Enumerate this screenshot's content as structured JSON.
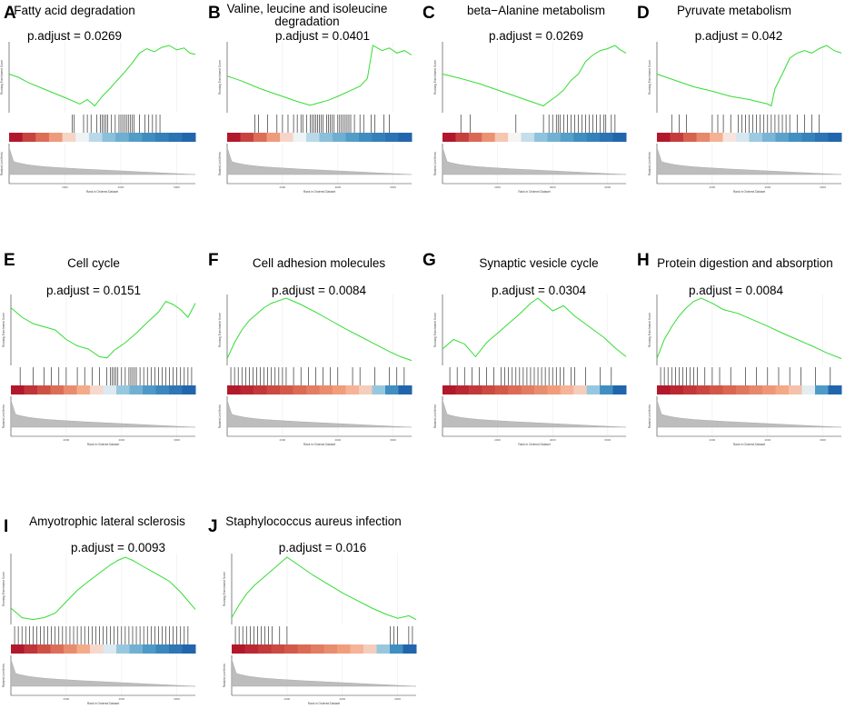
{
  "figure": {
    "es_axis_label": "Running Enrichment Score",
    "rank_axis_label": "Ranked List Metric",
    "x_axis_label": "Rank in Ordered Dataset",
    "x_tick_labels": [
      "2000",
      "4000",
      "6000"
    ],
    "line_color": "#33dd33",
    "hit_color": "#111111",
    "fill_color": "#bdbdbd"
  },
  "chart_data": [
    {
      "letter": "A",
      "title": "Fatty acid degradation",
      "padj_label": "p.adjust = 0.0269",
      "type": "line",
      "es": [
        [
          0,
          0.55
        ],
        [
          5,
          0.5
        ],
        [
          10,
          0.42
        ],
        [
          20,
          0.3
        ],
        [
          30,
          0.18
        ],
        [
          38,
          0.08
        ],
        [
          42,
          0.15
        ],
        [
          46,
          0.05
        ],
        [
          50,
          0.2
        ],
        [
          54,
          0.32
        ],
        [
          58,
          0.45
        ],
        [
          62,
          0.58
        ],
        [
          66,
          0.72
        ],
        [
          70,
          0.88
        ],
        [
          74,
          0.95
        ],
        [
          78,
          0.9
        ],
        [
          82,
          0.97
        ],
        [
          86,
          1
        ],
        [
          90,
          0.93
        ],
        [
          94,
          0.96
        ],
        [
          97,
          0.88
        ],
        [
          100,
          0.86
        ]
      ],
      "hits": [
        34,
        35,
        40,
        42,
        44,
        47,
        49,
        50,
        51,
        52,
        53,
        55,
        57,
        59,
        60,
        61,
        62,
        63,
        64,
        65,
        66,
        67,
        70,
        73,
        75,
        77,
        79,
        81
      ],
      "heat_bias": 0.3
    },
    {
      "letter": "B",
      "title": "Valine, leucine and isoleucine degradation",
      "padj_label": "p.adjust = 0.0401",
      "type": "line",
      "es": [
        [
          0,
          0.52
        ],
        [
          8,
          0.44
        ],
        [
          18,
          0.32
        ],
        [
          28,
          0.22
        ],
        [
          38,
          0.12
        ],
        [
          45,
          0.06
        ],
        [
          50,
          0.1
        ],
        [
          55,
          0.14
        ],
        [
          60,
          0.2
        ],
        [
          66,
          0.28
        ],
        [
          72,
          0.36
        ],
        [
          76,
          0.48
        ],
        [
          79,
          1
        ],
        [
          84,
          0.92
        ],
        [
          88,
          0.96
        ],
        [
          92,
          0.88
        ],
        [
          96,
          0.92
        ],
        [
          100,
          0.85
        ]
      ],
      "hits": [
        15,
        17,
        22,
        27,
        30,
        33,
        36,
        38,
        40,
        41,
        43,
        45,
        46,
        47,
        48,
        49,
        50,
        51,
        52,
        54,
        55,
        56,
        57,
        58,
        60,
        61,
        62,
        63,
        64,
        65,
        66,
        67,
        69,
        72,
        74,
        78,
        80,
        85,
        88
      ],
      "heat_bias": 0.3
    },
    {
      "letter": "C",
      "title": "beta−Alanine metabolism",
      "padj_label": "p.adjust = 0.0269",
      "type": "line",
      "es": [
        [
          0,
          0.55
        ],
        [
          10,
          0.48
        ],
        [
          20,
          0.4
        ],
        [
          30,
          0.3
        ],
        [
          40,
          0.2
        ],
        [
          50,
          0.1
        ],
        [
          55,
          0.05
        ],
        [
          58,
          0.12
        ],
        [
          62,
          0.2
        ],
        [
          66,
          0.3
        ],
        [
          70,
          0.45
        ],
        [
          74,
          0.55
        ],
        [
          78,
          0.75
        ],
        [
          82,
          0.85
        ],
        [
          86,
          0.92
        ],
        [
          90,
          0.95
        ],
        [
          94,
          1
        ],
        [
          97,
          0.93
        ],
        [
          100,
          0.88
        ]
      ],
      "hits": [
        10,
        15,
        40,
        55,
        58,
        60,
        62,
        63,
        64,
        66,
        68,
        70,
        72,
        74,
        76,
        78,
        80,
        82,
        84,
        86,
        88,
        89,
        92,
        94
      ],
      "heat_bias": 0.32
    },
    {
      "letter": "D",
      "title": "Pyruvate metabolism",
      "padj_label": "p.adjust = 0.042",
      "type": "line",
      "es": [
        [
          0,
          0.55
        ],
        [
          10,
          0.45
        ],
        [
          20,
          0.35
        ],
        [
          30,
          0.28
        ],
        [
          40,
          0.2
        ],
        [
          50,
          0.15
        ],
        [
          60,
          0.08
        ],
        [
          62,
          0.05
        ],
        [
          64,
          0.32
        ],
        [
          68,
          0.55
        ],
        [
          72,
          0.8
        ],
        [
          76,
          0.88
        ],
        [
          80,
          0.92
        ],
        [
          84,
          0.88
        ],
        [
          88,
          0.95
        ],
        [
          92,
          1
        ],
        [
          96,
          0.92
        ],
        [
          100,
          0.88
        ]
      ],
      "hits": [
        8,
        12,
        16,
        30,
        33,
        36,
        40,
        44,
        46,
        48,
        50,
        52,
        54,
        56,
        58,
        60,
        62,
        64,
        66,
        68,
        70,
        72,
        76,
        80,
        84,
        88
      ],
      "heat_bias": 0.35
    },
    {
      "letter": "E",
      "title": "Cell cycle",
      "padj_label": "p.adjust = 0.0151",
      "type": "line",
      "es": [
        [
          0,
          0.85
        ],
        [
          6,
          0.7
        ],
        [
          12,
          0.6
        ],
        [
          18,
          0.55
        ],
        [
          24,
          0.5
        ],
        [
          30,
          0.35
        ],
        [
          36,
          0.25
        ],
        [
          42,
          0.2
        ],
        [
          48,
          0.08
        ],
        [
          52,
          0.06
        ],
        [
          56,
          0.18
        ],
        [
          62,
          0.3
        ],
        [
          68,
          0.45
        ],
        [
          74,
          0.62
        ],
        [
          80,
          0.78
        ],
        [
          84,
          0.95
        ],
        [
          88,
          0.9
        ],
        [
          92,
          0.82
        ],
        [
          96,
          0.7
        ],
        [
          100,
          0.92
        ]
      ],
      "hits": [
        5,
        12,
        18,
        22,
        26,
        30,
        36,
        40,
        44,
        48,
        52,
        54,
        55,
        56,
        57,
        58,
        60,
        62,
        64,
        65,
        66,
        67,
        68,
        70,
        72,
        74,
        76,
        78,
        80,
        82,
        84,
        86,
        88,
        90,
        92,
        94,
        96,
        98
      ],
      "heat_bias": 0.45
    },
    {
      "letter": "F",
      "title": "Cell adhesion molecules",
      "padj_label": "p.adjust = 0.0084",
      "type": "line",
      "es": [
        [
          0,
          0.05
        ],
        [
          4,
          0.3
        ],
        [
          8,
          0.5
        ],
        [
          12,
          0.65
        ],
        [
          16,
          0.75
        ],
        [
          20,
          0.85
        ],
        [
          24,
          0.92
        ],
        [
          28,
          0.96
        ],
        [
          32,
          1
        ],
        [
          36,
          0.95
        ],
        [
          40,
          0.9
        ],
        [
          48,
          0.78
        ],
        [
          56,
          0.65
        ],
        [
          64,
          0.52
        ],
        [
          72,
          0.4
        ],
        [
          80,
          0.28
        ],
        [
          88,
          0.16
        ],
        [
          94,
          0.08
        ],
        [
          100,
          0.02
        ]
      ],
      "hits": [
        2,
        4,
        6,
        8,
        10,
        12,
        14,
        16,
        18,
        20,
        22,
        24,
        26,
        28,
        30,
        32,
        36,
        40,
        44,
        48,
        52,
        56,
        60,
        68,
        72,
        80,
        88,
        92,
        96
      ],
      "heat_bias": 0.78
    },
    {
      "letter": "G",
      "title": "Synaptic vesicle cycle",
      "padj_label": "p.adjust = 0.0304",
      "type": "line",
      "es": [
        [
          0,
          0.2
        ],
        [
          6,
          0.35
        ],
        [
          12,
          0.28
        ],
        [
          18,
          0.08
        ],
        [
          24,
          0.3
        ],
        [
          30,
          0.45
        ],
        [
          36,
          0.6
        ],
        [
          42,
          0.75
        ],
        [
          48,
          0.92
        ],
        [
          52,
          1
        ],
        [
          56,
          0.9
        ],
        [
          60,
          0.8
        ],
        [
          66,
          0.88
        ],
        [
          72,
          0.72
        ],
        [
          80,
          0.55
        ],
        [
          88,
          0.38
        ],
        [
          94,
          0.22
        ],
        [
          100,
          0.08
        ]
      ],
      "hits": [
        4,
        8,
        12,
        16,
        20,
        24,
        28,
        32,
        34,
        36,
        38,
        40,
        42,
        44,
        46,
        48,
        50,
        52,
        54,
        56,
        58,
        60,
        62,
        64,
        66,
        70,
        72,
        78,
        86,
        92
      ],
      "heat_bias": 0.78
    },
    {
      "letter": "H",
      "title": "Protein digestion and absorption",
      "padj_label": "p.adjust = 0.0084",
      "type": "line",
      "es": [
        [
          0,
          0.05
        ],
        [
          4,
          0.35
        ],
        [
          8,
          0.55
        ],
        [
          12,
          0.72
        ],
        [
          16,
          0.85
        ],
        [
          20,
          0.95
        ],
        [
          24,
          1
        ],
        [
          30,
          0.92
        ],
        [
          36,
          0.82
        ],
        [
          44,
          0.76
        ],
        [
          52,
          0.66
        ],
        [
          60,
          0.56
        ],
        [
          68,
          0.45
        ],
        [
          76,
          0.35
        ],
        [
          84,
          0.25
        ],
        [
          92,
          0.14
        ],
        [
          100,
          0.05
        ]
      ],
      "hits": [
        2,
        4,
        6,
        8,
        10,
        12,
        14,
        16,
        18,
        20,
        22,
        26,
        30,
        34,
        40,
        48,
        54,
        60,
        66,
        72,
        78,
        86,
        94
      ],
      "heat_bias": 0.82
    },
    {
      "letter": "I",
      "title": "Amyotrophic lateral sclerosis",
      "padj_label": "p.adjust = 0.0093",
      "type": "line",
      "es": [
        [
          0,
          0.2
        ],
        [
          6,
          0.05
        ],
        [
          12,
          0.02
        ],
        [
          18,
          0.05
        ],
        [
          24,
          0.12
        ],
        [
          30,
          0.3
        ],
        [
          36,
          0.48
        ],
        [
          42,
          0.62
        ],
        [
          48,
          0.75
        ],
        [
          54,
          0.88
        ],
        [
          58,
          0.95
        ],
        [
          62,
          1
        ],
        [
          66,
          0.95
        ],
        [
          72,
          0.85
        ],
        [
          80,
          0.72
        ],
        [
          86,
          0.62
        ],
        [
          92,
          0.45
        ],
        [
          100,
          0.18
        ]
      ],
      "hits": [
        2,
        4,
        6,
        8,
        10,
        12,
        14,
        16,
        18,
        20,
        22,
        24,
        26,
        28,
        30,
        32,
        34,
        36,
        38,
        40,
        42,
        44,
        46,
        48,
        50,
        52,
        54,
        56,
        58,
        60,
        62,
        64,
        66,
        68,
        70,
        72,
        74,
        76,
        78,
        80,
        82,
        84,
        86,
        88,
        90,
        92,
        94,
        96
      ],
      "heat_bias": 0.45
    },
    {
      "letter": "J",
      "title": "Staphylococcus aureus infection",
      "padj_label": "p.adjust = 0.016",
      "type": "line",
      "es": [
        [
          0,
          0.05
        ],
        [
          4,
          0.25
        ],
        [
          8,
          0.42
        ],
        [
          12,
          0.55
        ],
        [
          16,
          0.65
        ],
        [
          20,
          0.75
        ],
        [
          24,
          0.85
        ],
        [
          28,
          0.95
        ],
        [
          30,
          1
        ],
        [
          36,
          0.88
        ],
        [
          44,
          0.72
        ],
        [
          52,
          0.58
        ],
        [
          60,
          0.44
        ],
        [
          68,
          0.32
        ],
        [
          76,
          0.2
        ],
        [
          84,
          0.1
        ],
        [
          90,
          0.04
        ],
        [
          96,
          0.08
        ],
        [
          100,
          0.02
        ]
      ],
      "hits": [
        2,
        4,
        6,
        8,
        10,
        12,
        14,
        16,
        18,
        20,
        22,
        26,
        30,
        86,
        88,
        90,
        96,
        98
      ],
      "heat_bias": 0.78
    }
  ]
}
